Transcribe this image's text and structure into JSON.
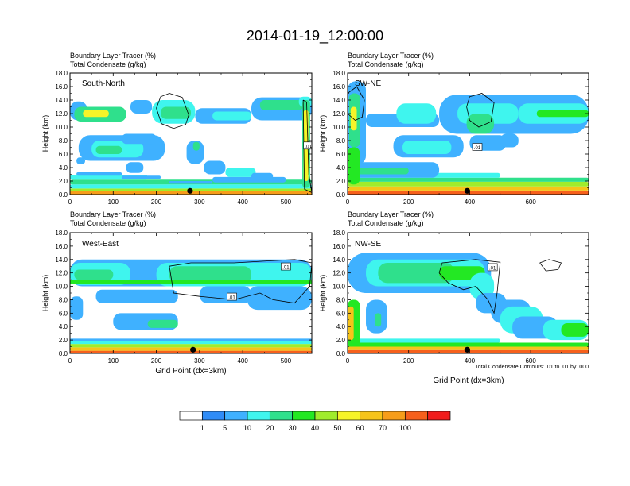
{
  "title": "2014-01-19_12:00:00",
  "colors": {
    "levels": [
      "#ffffff",
      "#2f8cf7",
      "#3fb1ff",
      "#3ff5ee",
      "#2fe08c",
      "#23e823",
      "#a0ec2c",
      "#f6f428",
      "#f6c41a",
      "#f69d1a",
      "#f6601c",
      "#f01c1c"
    ],
    "contour": "#000000"
  },
  "colorbar": {
    "labels": [
      "1",
      "5",
      "10",
      "20",
      "30",
      "40",
      "50",
      "60",
      "70",
      "100"
    ]
  },
  "footnote": "Total Condensate Contours: .01 to .01 by .000",
  "chart_data": [
    {
      "type": "heatmap",
      "panel_label": "South-North",
      "subtitle_line1": "Boundary Layer Tracer    (%)",
      "subtitle_line2": "Total Condensate    (g/kg)",
      "ylabel": "Height (km)",
      "xlabel": "",
      "xlim": [
        0,
        560
      ],
      "ylim": [
        0,
        18
      ],
      "xticks": [
        "0",
        "100",
        "200",
        "300",
        "400",
        "500"
      ],
      "yticks": [
        "0.0",
        "2.0",
        "4.0",
        "6.0",
        "8.0",
        "10.0",
        "12.0",
        "14.0",
        "16.0",
        "18.0"
      ],
      "marker_x": 278,
      "contour_labels": [
        ".01"
      ],
      "contour_label_pos": [
        [
          552,
          7.2
        ]
      ],
      "cloud": [
        [
          0,
          560,
          0,
          0.5,
          9
        ],
        [
          0,
          560,
          0.5,
          0.9,
          6
        ],
        [
          0,
          560,
          0.9,
          1.5,
          3
        ],
        [
          0,
          560,
          1.5,
          2.2,
          4
        ],
        [
          0,
          180,
          2.2,
          2.9,
          3
        ],
        [
          15,
          120,
          2.8,
          3.3,
          2
        ],
        [
          120,
          210,
          2.3,
          2.8,
          2
        ],
        [
          230,
          330,
          1.6,
          2.0,
          2
        ],
        [
          330,
          500,
          1.8,
          2.6,
          2
        ],
        [
          360,
          430,
          2.6,
          4.0,
          3
        ],
        [
          310,
          360,
          3.0,
          5.0,
          2
        ],
        [
          420,
          470,
          2.2,
          3.2,
          2
        ],
        [
          0,
          40,
          11.0,
          13.8,
          2
        ],
        [
          10,
          130,
          10.8,
          13.0,
          4
        ],
        [
          30,
          90,
          11.5,
          12.5,
          7
        ],
        [
          140,
          190,
          12.0,
          14.0,
          2
        ],
        [
          190,
          290,
          10.5,
          14.0,
          3
        ],
        [
          210,
          280,
          11.2,
          13.0,
          4
        ],
        [
          290,
          420,
          10.5,
          12.8,
          2
        ],
        [
          330,
          420,
          11.0,
          12.3,
          3
        ],
        [
          420,
          560,
          11.0,
          14.4,
          2
        ],
        [
          440,
          540,
          12.5,
          14.0,
          4
        ],
        [
          530,
          560,
          13.0,
          14.5,
          3
        ],
        [
          538,
          556,
          1.0,
          14.0,
          4
        ],
        [
          541,
          552,
          2.0,
          12.5,
          7
        ],
        [
          20,
          220,
          5.0,
          8.8,
          2
        ],
        [
          50,
          170,
          5.5,
          8.0,
          3
        ],
        [
          60,
          120,
          6.0,
          7.2,
          4
        ],
        [
          120,
          200,
          7.5,
          9.0,
          2
        ],
        [
          130,
          170,
          3.2,
          4.8,
          2
        ],
        [
          270,
          310,
          4.5,
          8.0,
          2
        ],
        [
          285,
          300,
          6.5,
          7.8,
          4
        ],
        [
          15,
          35,
          4.5,
          5.5,
          2
        ]
      ],
      "contours": [
        [
          [
            200,
            12.8
          ],
          [
            210,
            14.5
          ],
          [
            230,
            15.0
          ],
          [
            260,
            14.4
          ],
          [
            275,
            11.8
          ],
          [
            268,
            10.4
          ],
          [
            240,
            9.8
          ],
          [
            212,
            10.5
          ],
          [
            200,
            12.8
          ]
        ],
        [
          [
            540,
            14.0
          ],
          [
            548,
            13.7
          ],
          [
            553,
            3.0
          ],
          [
            560,
            0.3
          ],
          [
            543,
            0.8
          ],
          [
            540,
            14.0
          ]
        ]
      ]
    },
    {
      "type": "heatmap",
      "panel_label": "SW-NE",
      "subtitle_line1": "Boundary Layer Tracer    (%)",
      "subtitle_line2": "Total Condensate    (g/kg)",
      "ylabel": "Height (km)",
      "xlabel": "",
      "xlim": [
        0,
        790
      ],
      "ylim": [
        0,
        18
      ],
      "xticks": [
        "0",
        "200",
        "400",
        "600"
      ],
      "yticks": [
        "0.0",
        "2.0",
        "4.0",
        "6.0",
        "8.0",
        "10.0",
        "12.0",
        "14.0",
        "16.0",
        "18.0"
      ],
      "marker_x": 392,
      "contour_labels": [
        ".01"
      ],
      "contour_label_pos": [
        [
          425,
          7.0
        ]
      ],
      "cloud": [
        [
          0,
          790,
          0,
          0.6,
          10
        ],
        [
          0,
          790,
          0.6,
          1.2,
          8
        ],
        [
          0,
          790,
          1.2,
          1.9,
          6
        ],
        [
          0,
          790,
          1.9,
          2.5,
          4
        ],
        [
          0,
          500,
          2.5,
          3.2,
          3
        ],
        [
          20,
          300,
          2.5,
          4.8,
          2
        ],
        [
          30,
          200,
          3.0,
          4.0,
          4
        ],
        [
          0,
          60,
          4.5,
          16.8,
          2
        ],
        [
          5,
          40,
          7.0,
          15.0,
          4
        ],
        [
          10,
          30,
          9.5,
          13.0,
          7
        ],
        [
          60,
          300,
          10.0,
          12.0,
          2
        ],
        [
          160,
          290,
          10.5,
          13.5,
          3
        ],
        [
          300,
          790,
          9.0,
          14.8,
          2
        ],
        [
          360,
          560,
          10.5,
          13.5,
          3
        ],
        [
          390,
          480,
          9.0,
          12.0,
          4
        ],
        [
          560,
          790,
          10.5,
          13.5,
          3
        ],
        [
          620,
          790,
          11.5,
          12.5,
          5
        ],
        [
          150,
          380,
          5.5,
          8.8,
          2
        ],
        [
          180,
          340,
          6.0,
          8.0,
          3
        ],
        [
          400,
          520,
          6.5,
          8.8,
          2
        ],
        [
          500,
          560,
          7.0,
          9.0,
          2
        ],
        [
          0,
          40,
          1.5,
          7.0,
          5
        ]
      ],
      "contours": [
        [
          [
            0,
            15.0
          ],
          [
            30,
            16.0
          ],
          [
            55,
            14.0
          ],
          [
            48,
            11.5
          ],
          [
            25,
            11.0
          ],
          [
            0,
            12.0
          ]
        ],
        [
          [
            390,
            13.0
          ],
          [
            400,
            14.5
          ],
          [
            440,
            15.0
          ],
          [
            480,
            13.6
          ],
          [
            470,
            10.8
          ],
          [
            430,
            10.0
          ],
          [
            400,
            11.0
          ],
          [
            390,
            13.0
          ]
        ]
      ]
    },
    {
      "type": "heatmap",
      "panel_label": "West-East",
      "subtitle_line1": "Boundary Layer Tracer    (%)",
      "subtitle_line2": "Total Condensate    (g/kg)",
      "ylabel": "Height (km)",
      "xlabel": "Grid Point (dx=3km)",
      "xlim": [
        0,
        560
      ],
      "ylim": [
        0,
        18
      ],
      "xticks": [
        "0",
        "100",
        "200",
        "300",
        "400",
        "500"
      ],
      "yticks": [
        "0.0",
        "2.0",
        "4.0",
        "6.0",
        "8.0",
        "10.0",
        "12.0",
        "14.0",
        "16.0",
        "18.0"
      ],
      "marker_x": 285,
      "contour_labels": [
        ".01",
        ".01"
      ],
      "contour_label_pos": [
        [
          500,
          12.9
        ],
        [
          375,
          8.4
        ]
      ],
      "cloud": [
        [
          0,
          560,
          0,
          0.4,
          10
        ],
        [
          0,
          560,
          0.4,
          0.9,
          8
        ],
        [
          0,
          560,
          0.9,
          1.4,
          6
        ],
        [
          0,
          560,
          1.4,
          1.8,
          3
        ],
        [
          0,
          560,
          1.8,
          2.2,
          2
        ],
        [
          0,
          560,
          10.0,
          14.0,
          2
        ],
        [
          0,
          140,
          10.2,
          13.5,
          3
        ],
        [
          10,
          100,
          11.0,
          12.5,
          4
        ],
        [
          200,
          560,
          10.0,
          13.5,
          3
        ],
        [
          230,
          420,
          10.5,
          13.0,
          4
        ],
        [
          420,
          560,
          10.8,
          12.5,
          3
        ],
        [
          300,
          420,
          7.5,
          10.0,
          2
        ],
        [
          410,
          560,
          6.5,
          10.0,
          2
        ],
        [
          60,
          250,
          7.5,
          9.5,
          2
        ],
        [
          0,
          30,
          5.0,
          8.5,
          2
        ],
        [
          100,
          250,
          3.5,
          6.0,
          2
        ],
        [
          180,
          250,
          3.8,
          5.0,
          4
        ],
        [
          0,
          560,
          10.3,
          11.0,
          5
        ]
      ],
      "contours": [
        [
          [
            230,
            13.0
          ],
          [
            280,
            13.5
          ],
          [
            380,
            13.5
          ],
          [
            460,
            13.8
          ],
          [
            520,
            14.0
          ],
          [
            560,
            13.5
          ],
          [
            555,
            10.0
          ],
          [
            520,
            7.5
          ],
          [
            470,
            8.0
          ],
          [
            440,
            9.0
          ],
          [
            380,
            8.0
          ],
          [
            300,
            8.5
          ],
          [
            240,
            9.0
          ],
          [
            230,
            13.0
          ]
        ]
      ]
    },
    {
      "type": "heatmap",
      "panel_label": "NW-SE",
      "subtitle_line1": "Boundary Layer Tracer    (%)",
      "subtitle_line2": "Total Condensate    (g/kg)",
      "ylabel": "Height (km)",
      "xlabel": "Grid Point (dx=3km)",
      "xlim": [
        0,
        790
      ],
      "ylim": [
        0,
        18
      ],
      "xticks": [
        "0",
        "200",
        "400",
        "600"
      ],
      "yticks": [
        "0.0",
        "2.0",
        "4.0",
        "6.0",
        "8.0",
        "10.0",
        "12.0",
        "14.0",
        "16.0",
        "18.0"
      ],
      "marker_x": 392,
      "contour_labels": [
        ".01"
      ],
      "contour_label_pos": [
        [
          475,
          12.8
        ]
      ],
      "cloud": [
        [
          0,
          790,
          0,
          0.5,
          10
        ],
        [
          0,
          790,
          0.5,
          1.0,
          8
        ],
        [
          0,
          790,
          1.0,
          1.6,
          5
        ],
        [
          0,
          500,
          1.6,
          2.2,
          3
        ],
        [
          0,
          40,
          1.0,
          8.0,
          5
        ],
        [
          0,
          20,
          2.0,
          7.0,
          8
        ],
        [
          0,
          470,
          9.0,
          15.0,
          2
        ],
        [
          60,
          450,
          10.0,
          14.0,
          3
        ],
        [
          100,
          350,
          10.5,
          13.5,
          4
        ],
        [
          300,
          450,
          11.0,
          13.0,
          5
        ],
        [
          400,
          480,
          8.0,
          12.0,
          3
        ],
        [
          420,
          520,
          6.0,
          9.0,
          2
        ],
        [
          470,
          600,
          4.5,
          8.0,
          2
        ],
        [
          500,
          640,
          3.0,
          7.0,
          3
        ],
        [
          540,
          690,
          2.2,
          5.5,
          2
        ],
        [
          640,
          790,
          2.0,
          5.0,
          3
        ],
        [
          700,
          790,
          2.5,
          4.5,
          5
        ],
        [
          60,
          130,
          3.0,
          8.0,
          2
        ],
        [
          90,
          110,
          4.0,
          6.0,
          4
        ]
      ],
      "contours": [
        [
          [
            300,
            12.0
          ],
          [
            310,
            13.5
          ],
          [
            420,
            14.0
          ],
          [
            500,
            13.6
          ],
          [
            490,
            9.0
          ],
          [
            480,
            6.0
          ],
          [
            460,
            8.0
          ],
          [
            420,
            10.0
          ],
          [
            380,
            9.5
          ],
          [
            330,
            10.5
          ],
          [
            300,
            12.0
          ]
        ],
        [
          [
            630,
            13.5
          ],
          [
            660,
            14.0
          ],
          [
            700,
            13.5
          ],
          [
            690,
            12.5
          ],
          [
            650,
            12.3
          ],
          [
            630,
            13.5
          ]
        ]
      ]
    }
  ]
}
